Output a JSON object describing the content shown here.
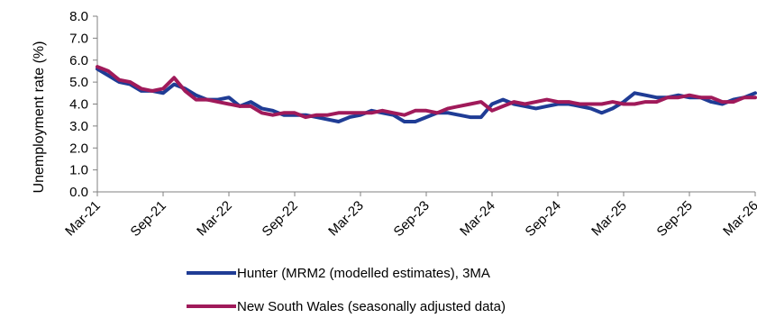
{
  "chart_data": {
    "type": "line",
    "ylabel": "Unemployment rate (%)",
    "ylim": [
      0,
      8
    ],
    "yticks": [
      "0.0",
      "1.0",
      "2.0",
      "3.0",
      "4.0",
      "5.0",
      "6.0",
      "7.0",
      "8.0"
    ],
    "x": [
      "Mar-21",
      "Apr-21",
      "May-21",
      "Jun-21",
      "Jul-21",
      "Aug-21",
      "Sep-21",
      "Oct-21",
      "Nov-21",
      "Dec-21",
      "Jan-22",
      "Feb-22",
      "Mar-22",
      "Apr-22",
      "May-22",
      "Jun-22",
      "Jul-22",
      "Aug-22",
      "Sep-22",
      "Oct-22",
      "Nov-22",
      "Dec-22",
      "Jan-23",
      "Feb-23",
      "Mar-23",
      "Apr-23",
      "May-23",
      "Jun-23",
      "Jul-23",
      "Aug-23",
      "Sep-23",
      "Oct-23",
      "Nov-23",
      "Dec-23",
      "Jan-24",
      "Feb-24",
      "Mar-24",
      "Apr-24",
      "May-24",
      "Jun-24",
      "Jul-24",
      "Aug-24",
      "Sep-24",
      "Oct-24",
      "Nov-24",
      "Dec-24",
      "Jan-25",
      "Feb-25",
      "Mar-25",
      "Apr-25",
      "May-25",
      "Jun-25",
      "Jul-25",
      "Aug-25",
      "Sep-25",
      "Oct-25",
      "Nov-25",
      "Dec-25",
      "Jan-26",
      "Feb-26",
      "Mar-26"
    ],
    "xticks": [
      "Mar-21",
      "Sep-21",
      "Mar-22",
      "Sep-22",
      "Mar-23",
      "Sep-23",
      "Mar-24",
      "Sep-24",
      "Mar-25",
      "Sep-25",
      "Mar-26"
    ],
    "grid": false,
    "legend_position": "bottom",
    "series": [
      {
        "name": "Hunter (MRM2 (modelled estimates), 3MA",
        "color": "#1f3c95",
        "values": [
          5.6,
          5.3,
          5.0,
          4.9,
          4.6,
          4.6,
          4.5,
          4.9,
          4.7,
          4.4,
          4.2,
          4.2,
          4.3,
          3.9,
          4.1,
          3.8,
          3.7,
          3.5,
          3.5,
          3.5,
          3.4,
          3.3,
          3.2,
          3.4,
          3.5,
          3.7,
          3.6,
          3.5,
          3.2,
          3.2,
          3.4,
          3.6,
          3.6,
          3.5,
          3.4,
          3.4,
          4.0,
          4.2,
          4.0,
          3.9,
          3.8,
          3.9,
          4.0,
          4.0,
          3.9,
          3.8,
          3.6,
          3.8,
          4.1,
          4.5,
          4.4,
          4.3,
          4.3,
          4.4,
          4.3,
          4.3,
          4.1,
          4.0,
          4.2,
          4.3,
          4.5
        ]
      },
      {
        "name": "New South Wales (seasonally adjusted data)",
        "color": "#a01a5a",
        "values": [
          5.7,
          5.5,
          5.1,
          5.0,
          4.7,
          4.6,
          4.7,
          5.2,
          4.6,
          4.2,
          4.2,
          4.1,
          4.0,
          3.9,
          3.9,
          3.6,
          3.5,
          3.6,
          3.6,
          3.4,
          3.5,
          3.5,
          3.6,
          3.6,
          3.6,
          3.6,
          3.7,
          3.6,
          3.5,
          3.7,
          3.7,
          3.6,
          3.8,
          3.9,
          4.0,
          4.1,
          3.7,
          3.9,
          4.1,
          4.0,
          4.1,
          4.2,
          4.1,
          4.1,
          4.0,
          4.0,
          4.0,
          4.1,
          4.0,
          4.0,
          4.1,
          4.1,
          4.3,
          4.3,
          4.4,
          4.3,
          4.3,
          4.1,
          4.1,
          4.3,
          4.3
        ]
      }
    ]
  }
}
